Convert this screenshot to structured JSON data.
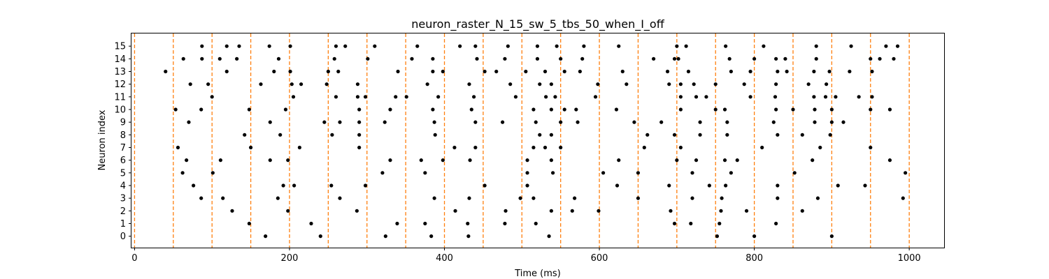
{
  "chart_data": {
    "type": "scatter",
    "title": "neuron_raster_N_15_sw_5_tbs_50_when_I_off",
    "xlabel": "Time (ms)",
    "ylabel": "Neuron index",
    "xlim": [
      -4,
      1045
    ],
    "ylim": [
      -0.9,
      16.0
    ],
    "xticks": [
      0,
      200,
      400,
      600,
      800,
      1000
    ],
    "yticks": [
      0,
      1,
      2,
      3,
      4,
      5,
      6,
      7,
      8,
      9,
      10,
      11,
      12,
      13,
      14,
      15
    ],
    "grid": false,
    "legend": "none",
    "colors": {
      "spike": "#000000",
      "boundary": "#ff7f0e"
    },
    "boundary_lines": {
      "style": "dashed",
      "x": [
        0,
        50,
        100,
        150,
        200,
        250,
        300,
        350,
        400,
        450,
        500,
        550,
        600,
        650,
        700,
        750,
        800,
        850,
        900,
        950,
        1000
      ]
    },
    "spikes": [
      {
        "neuron": 15,
        "times": [
          87,
          119,
          135,
          174,
          201,
          260,
          272,
          310,
          365,
          420,
          440,
          482,
          520,
          545,
          580,
          625,
          700,
          712,
          763,
          812,
          880,
          925,
          970,
          985
        ]
      },
      {
        "neuron": 14,
        "times": [
          63,
          87,
          110,
          132,
          186,
          258,
          301,
          358,
          385,
          442,
          478,
          520,
          550,
          578,
          670,
          697,
          702,
          768,
          800,
          828,
          840,
          880,
          950,
          962,
          980
        ]
      },
      {
        "neuron": 13,
        "times": [
          40,
          119,
          180,
          201,
          250,
          263,
          340,
          385,
          398,
          452,
          467,
          505,
          530,
          555,
          575,
          630,
          688,
          715,
          770,
          795,
          830,
          842,
          877,
          897,
          923,
          952
        ]
      },
      {
        "neuron": 12,
        "times": [
          72,
          95,
          163,
          203,
          215,
          248,
          288,
          378,
          432,
          485,
          523,
          538,
          598,
          635,
          690,
          705,
          722,
          750,
          787,
          828,
          870,
          893
        ]
      },
      {
        "neuron": 11,
        "times": [
          100,
          205,
          260,
          288,
          298,
          337,
          351,
          392,
          438,
          492,
          531,
          543,
          595,
          705,
          725,
          738,
          795,
          827,
          877,
          892,
          905,
          935,
          952
        ]
      },
      {
        "neuron": 10,
        "times": [
          53,
          86,
          148,
          195,
          290,
          330,
          385,
          435,
          515,
          538,
          555,
          570,
          622,
          705,
          750,
          762,
          828,
          850,
          878,
          900,
          950,
          975
        ]
      },
      {
        "neuron": 9,
        "times": [
          70,
          175,
          245,
          265,
          290,
          323,
          387,
          440,
          475,
          518,
          550,
          572,
          645,
          680,
          730,
          765,
          825,
          878,
          900,
          915
        ]
      },
      {
        "neuron": 8,
        "times": [
          142,
          188,
          255,
          290,
          388,
          523,
          538,
          662,
          697,
          730,
          765,
          830,
          862,
          898
        ]
      },
      {
        "neuron": 7,
        "times": [
          56,
          150,
          213,
          290,
          413,
          440,
          515,
          530,
          550,
          658,
          705,
          810,
          885,
          950
        ]
      },
      {
        "neuron": 6,
        "times": [
          67,
          111,
          175,
          198,
          330,
          370,
          398,
          433,
          507,
          538,
          625,
          700,
          725,
          762,
          778,
          875,
          975
        ]
      },
      {
        "neuron": 5,
        "times": [
          62,
          101,
          320,
          375,
          507,
          540,
          605,
          650,
          720,
          770,
          852,
          995
        ]
      },
      {
        "neuron": 4,
        "times": [
          76,
          192,
          206,
          254,
          298,
          452,
          507,
          623,
          690,
          742,
          763,
          830,
          908,
          943
        ]
      },
      {
        "neuron": 3,
        "times": [
          86,
          114,
          185,
          265,
          387,
          432,
          498,
          515,
          568,
          650,
          720,
          758,
          830,
          882,
          992
        ]
      },
      {
        "neuron": 2,
        "times": [
          126,
          198,
          287,
          414,
          479,
          538,
          565,
          599,
          692,
          757,
          790,
          862
        ]
      },
      {
        "neuron": 1,
        "times": [
          148,
          228,
          339,
          375,
          430,
          478,
          518,
          697,
          718,
          755,
          828
        ]
      },
      {
        "neuron": 0,
        "times": [
          169,
          240,
          324,
          383,
          431,
          535,
          752,
          800,
          900
        ]
      }
    ]
  }
}
